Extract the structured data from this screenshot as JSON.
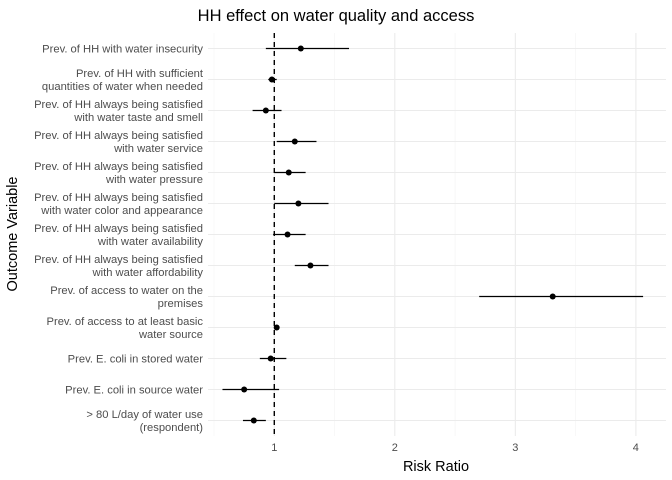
{
  "chart_data": {
    "type": "forest",
    "title": "HH effect on water quality and access",
    "xlabel": "Risk Ratio",
    "ylabel": "Outcome Variable",
    "xlim": [
      0.45,
      4.25
    ],
    "xticks": [
      1,
      2,
      3,
      4
    ],
    "reference_line": 1,
    "grid": true,
    "categories": [
      [
        "Prev. of HH with water insecurity"
      ],
      [
        "Prev. of HH with sufficient",
        "quantities of water when needed"
      ],
      [
        "Prev. of HH always being satisfied",
        "with water taste and smell"
      ],
      [
        "Prev. of HH always being satisfied",
        "with water service"
      ],
      [
        "Prev. of HH always being satisfied",
        "with water pressure"
      ],
      [
        "Prev. of HH always being satisfied",
        "with water color and appearance"
      ],
      [
        "Prev. of HH always being satisfied",
        "with water availability"
      ],
      [
        "Prev. of HH always being satisfied",
        "with water affordability"
      ],
      [
        "Prev. of access to water on the",
        "premises"
      ],
      [
        "Prev. of access to at least basic",
        "water source"
      ],
      [
        "Prev. E. coli in stored water"
      ],
      [
        "Prev. E. coli in source water"
      ],
      [
        "> 80 L/day of water use",
        "(respondent)"
      ]
    ],
    "estimates": [
      1.22,
      0.98,
      0.93,
      1.17,
      1.12,
      1.2,
      1.11,
      1.3,
      3.31,
      1.02,
      0.97,
      0.75,
      0.83
    ],
    "ci_lower": [
      0.93,
      0.95,
      0.82,
      1.02,
      1.0,
      1.0,
      0.99,
      1.17,
      2.7,
      1.0,
      0.88,
      0.57,
      0.74
    ],
    "ci_upper": [
      1.62,
      1.02,
      1.06,
      1.35,
      1.26,
      1.45,
      1.26,
      1.45,
      4.06,
      1.04,
      1.1,
      1.04,
      0.93
    ]
  }
}
